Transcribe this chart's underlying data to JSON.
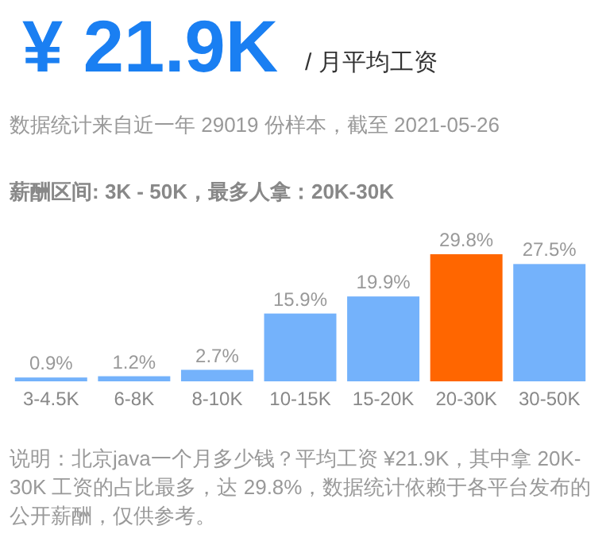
{
  "chart_data": {
    "type": "bar",
    "title": "¥ 21.9K",
    "subtitle": "/ 月平均工资",
    "annotations": [
      "数据统计来自近一年 29019 份样本，截至 2021-05-26",
      "薪酬区间: 3K - 50K，最多人拿：20K-30K",
      "说明：北京java一个月多少钱？平均工资 ¥21.9K，其中拿 20K-30K 工资的占比最多，达 29.8%，数据统计依赖于各平台发布的公开薪酬，仅供参考。"
    ],
    "categories": [
      "3-4.5K",
      "6-8K",
      "8-10K",
      "10-15K",
      "15-20K",
      "20-30K",
      "30-50K"
    ],
    "values": [
      0.9,
      1.2,
      2.7,
      15.9,
      19.9,
      29.8,
      27.5
    ],
    "value_labels": [
      "0.9%",
      "1.2%",
      "2.7%",
      "15.9%",
      "19.9%",
      "29.8%",
      "27.5%"
    ],
    "colors": [
      "#74b2fb",
      "#74b2fb",
      "#74b2fb",
      "#74b2fb",
      "#74b2fb",
      "#ff6600",
      "#74b2fb"
    ]
  }
}
